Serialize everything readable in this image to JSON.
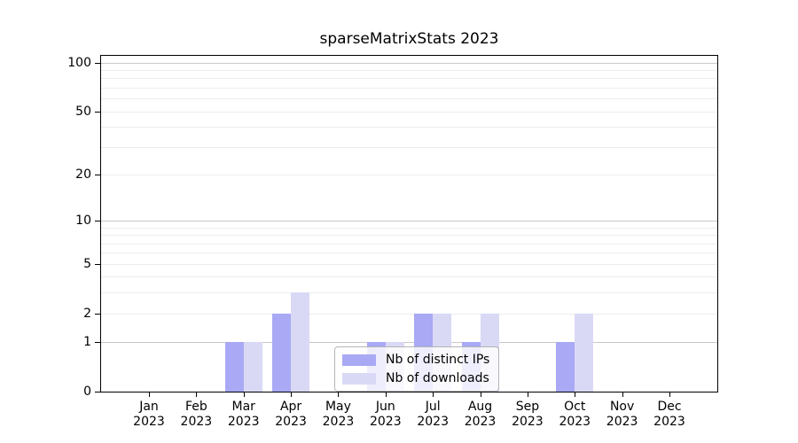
{
  "chart_data": {
    "type": "bar",
    "title": "sparseMatrixStats 2023",
    "categories": [
      "Jan 2023",
      "Feb 2023",
      "Mar 2023",
      "Apr 2023",
      "May 2023",
      "Jun 2023",
      "Jul 2023",
      "Aug 2023",
      "Sep 2023",
      "Oct 2023",
      "Nov 2023",
      "Dec 2023"
    ],
    "x_tick_line1": [
      "Jan",
      "Feb",
      "Mar",
      "Apr",
      "May",
      "Jun",
      "Jul",
      "Aug",
      "Sep",
      "Oct",
      "Nov",
      "Dec"
    ],
    "x_tick_line2": "2023",
    "series": [
      {
        "name": "Nb of distinct IPs",
        "color": "#a9a9f5",
        "values": [
          0,
          0,
          1,
          2,
          0,
          1,
          2,
          1,
          0,
          1,
          0,
          0
        ]
      },
      {
        "name": "Nb of downloads",
        "color": "#d9d9f6",
        "values": [
          0,
          0,
          1,
          3,
          0,
          1,
          2,
          2,
          0,
          2,
          0,
          0
        ]
      }
    ],
    "yaxis": {
      "scale": "log1p",
      "ticks": [
        0,
        1,
        2,
        5,
        10,
        20,
        50,
        100
      ],
      "major_gridlines": [
        1,
        10,
        100
      ],
      "minor_gridlines": [
        3,
        4,
        6,
        7,
        8,
        9,
        30,
        40,
        60,
        70,
        80,
        90
      ],
      "ymax": 110
    },
    "xlabel": "",
    "ylabel": "",
    "grid": true,
    "legend_position": "lower center"
  },
  "colors": {
    "background": "#ffffff",
    "axis": "#000000",
    "major_grid": "#c9c9c9",
    "minor_grid": "#ededed",
    "bar_distinct_ips": "#a9a9f5",
    "bar_downloads": "#d9d9f6",
    "legend_border": "#b5b5b5"
  }
}
